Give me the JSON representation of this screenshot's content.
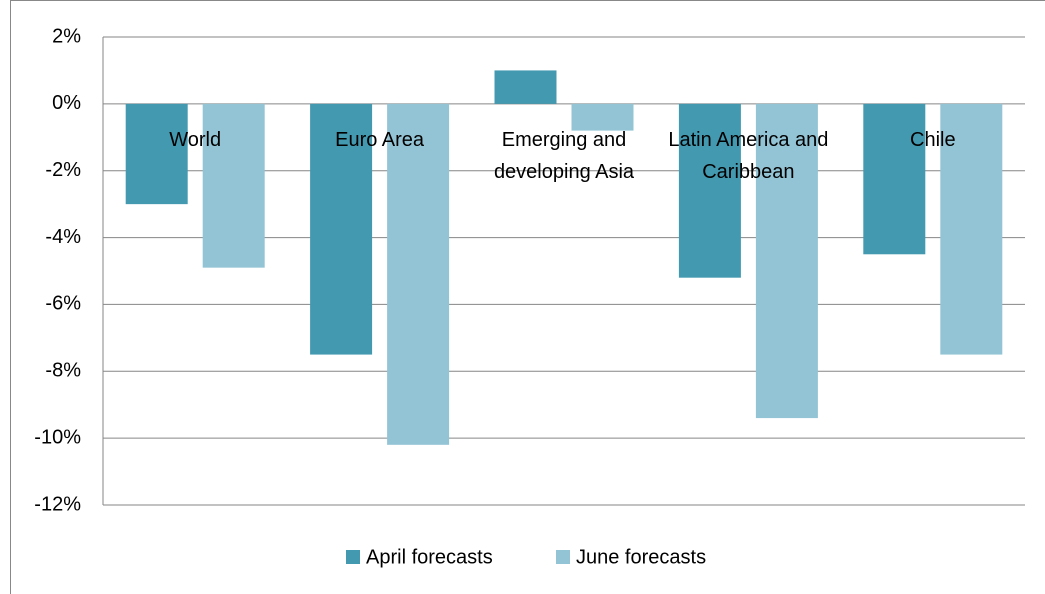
{
  "chart_data": {
    "type": "bar",
    "categories": [
      "World",
      "Euro Area",
      "Emerging and developing Asia",
      "Latin America and Caribbean",
      "Chile"
    ],
    "series": [
      {
        "name": "April forecasts",
        "color": "#4399b0",
        "values": [
          -3.0,
          -7.5,
          1.0,
          -5.2,
          -4.5
        ]
      },
      {
        "name": "June forecasts",
        "color": "#93c4d5",
        "values": [
          -4.9,
          -10.2,
          -0.8,
          -9.4,
          -7.5
        ]
      }
    ],
    "ylim": [
      -12,
      2
    ],
    "yticks": [
      {
        "value": 2,
        "label": "2%"
      },
      {
        "value": 0,
        "label": "0%"
      },
      {
        "value": -2,
        "label": "-2%"
      },
      {
        "value": -4,
        "label": "-4%"
      },
      {
        "value": -6,
        "label": "-6%"
      },
      {
        "value": -8,
        "label": "-8%"
      },
      {
        "value": -10,
        "label": "-10%"
      },
      {
        "value": -12,
        "label": "-12%"
      }
    ],
    "grid": true,
    "legend": "bottom"
  }
}
